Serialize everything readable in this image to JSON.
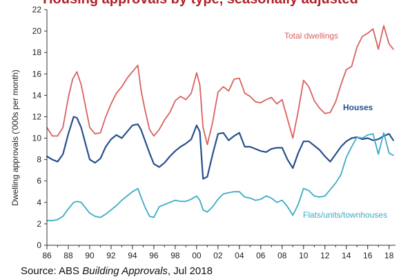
{
  "title": "Housing approvals by type, seasonally adjusted",
  "source": {
    "prefix": "Source: ABS ",
    "publication": "Building Approvals",
    "suffix": ", Jul 2018"
  },
  "colors": {
    "title": "#b0232a",
    "total": "#d9605f",
    "houses": "#274f8d",
    "flats": "#3aabc4",
    "axis": "#333333"
  },
  "chart_data": {
    "type": "line",
    "title": "Housing approvals by type, seasonally adjusted",
    "ylabel": "Dwelling approvals ('000s per month)",
    "xlabel": "",
    "xlim": [
      1986,
      2018.6
    ],
    "ylim": [
      0,
      22
    ],
    "x_ticks": [
      1986,
      1988,
      1990,
      1992,
      1994,
      1996,
      1998,
      2000,
      2002,
      2004,
      2006,
      2008,
      2010,
      2012,
      2014,
      2016,
      2018
    ],
    "x_tick_labels": [
      "86",
      "88",
      "90",
      "92",
      "94",
      "96",
      "98",
      "00",
      "02",
      "04",
      "06",
      "08",
      "10",
      "12",
      "14",
      "16",
      "18"
    ],
    "y_ticks": [
      0,
      2,
      4,
      6,
      8,
      10,
      12,
      14,
      16,
      18,
      20,
      22
    ],
    "grid": false,
    "series": [
      {
        "name": "Total dwellings",
        "x": [
          1986.0,
          1986.5,
          1987.0,
          1987.5,
          1988.0,
          1988.4,
          1988.8,
          1989.2,
          1989.6,
          1990.0,
          1990.5,
          1991.0,
          1991.5,
          1992.0,
          1992.5,
          1993.0,
          1993.5,
          1994.0,
          1994.5,
          1994.8,
          1995.2,
          1995.6,
          1996.0,
          1996.5,
          1997.0,
          1997.5,
          1998.0,
          1998.5,
          1999.0,
          1999.5,
          2000.0,
          2000.3,
          2000.6,
          2001.0,
          2001.5,
          2002.0,
          2002.5,
          2003.0,
          2003.5,
          2004.0,
          2004.5,
          2005.0,
          2005.5,
          2006.0,
          2006.5,
          2007.0,
          2007.5,
          2008.0,
          2008.5,
          2009.0,
          2009.5,
          2010.0,
          2010.5,
          2011.0,
          2011.5,
          2012.0,
          2012.5,
          2013.0,
          2013.5,
          2014.0,
          2014.5,
          2015.0,
          2015.5,
          2016.0,
          2016.5,
          2017.0,
          2017.5,
          2018.0,
          2018.4
        ],
        "y": [
          11,
          10.2,
          10.2,
          11,
          13.8,
          15.5,
          16.2,
          15,
          13,
          11,
          10.4,
          10.5,
          12,
          13.2,
          14.2,
          14.8,
          15.6,
          16.2,
          16.8,
          14.5,
          12.5,
          10.8,
          10.2,
          10.8,
          11.7,
          12.4,
          13.5,
          13.9,
          13.6,
          14.2,
          16.1,
          15,
          11,
          9.4,
          11.5,
          14.3,
          14.8,
          14.4,
          15.5,
          15.6,
          14.2,
          13.9,
          13.4,
          13.3,
          13.6,
          13.8,
          13.2,
          13.6,
          11.8,
          10,
          12.5,
          15.4,
          14.8,
          13.5,
          12.8,
          12.3,
          12.4,
          13.4,
          15,
          16.4,
          16.7,
          18.5,
          19.5,
          19.8,
          20.2,
          18.3,
          20.5,
          18.8,
          18.3
        ]
      },
      {
        "name": "Houses",
        "x": [
          1986.0,
          1986.5,
          1987.0,
          1987.5,
          1988.0,
          1988.5,
          1988.8,
          1989.2,
          1989.6,
          1990.0,
          1990.5,
          1991.0,
          1991.5,
          1992.0,
          1992.5,
          1993.0,
          1993.5,
          1994.0,
          1994.5,
          1994.8,
          1995.2,
          1995.6,
          1996.0,
          1996.5,
          1997.0,
          1997.5,
          1998.0,
          1998.5,
          1999.0,
          1999.5,
          2000.0,
          2000.3,
          2000.6,
          2001.0,
          2001.5,
          2002.0,
          2002.5,
          2003.0,
          2003.5,
          2004.0,
          2004.5,
          2005.0,
          2005.5,
          2006.0,
          2006.5,
          2007.0,
          2007.5,
          2008.0,
          2008.5,
          2009.0,
          2009.5,
          2010.0,
          2010.5,
          2011.0,
          2011.5,
          2012.0,
          2012.5,
          2013.0,
          2013.5,
          2014.0,
          2014.5,
          2015.0,
          2015.5,
          2016.0,
          2016.5,
          2017.0,
          2017.5,
          2018.0,
          2018.4
        ],
        "y": [
          8.3,
          8,
          7.8,
          8.5,
          10.4,
          12,
          11.9,
          11,
          9.5,
          8,
          7.7,
          8.1,
          9.2,
          9.9,
          10.3,
          10,
          10.6,
          11.2,
          11.3,
          10.8,
          9.7,
          8.6,
          7.6,
          7.3,
          7.7,
          8.3,
          8.8,
          9.2,
          9.5,
          9.9,
          11.2,
          10.6,
          6.2,
          6.4,
          8.5,
          10.4,
          10.5,
          9.8,
          10.2,
          10.5,
          9.2,
          9.2,
          9,
          8.8,
          8.7,
          9,
          9.1,
          9.1,
          8,
          7.2,
          8.6,
          9.7,
          9.7,
          9.3,
          8.9,
          8.3,
          7.8,
          8.5,
          9.2,
          9.7,
          10,
          10.1,
          9.9,
          10,
          9.8,
          9.9,
          10.2,
          10.4,
          9.8
        ]
      },
      {
        "name": "Flats/units/townhouses",
        "x": [
          1986.0,
          1986.5,
          1987.0,
          1987.5,
          1988.0,
          1988.5,
          1988.8,
          1989.2,
          1989.6,
          1990.0,
          1990.5,
          1991.0,
          1991.5,
          1992.0,
          1992.5,
          1993.0,
          1993.5,
          1994.0,
          1994.5,
          1994.8,
          1995.2,
          1995.6,
          1996.0,
          1996.5,
          1997.0,
          1997.5,
          1998.0,
          1998.5,
          1999.0,
          1999.5,
          2000.0,
          2000.3,
          2000.6,
          2001.0,
          2001.5,
          2002.0,
          2002.5,
          2003.0,
          2003.5,
          2004.0,
          2004.5,
          2005.0,
          2005.5,
          2006.0,
          2006.5,
          2007.0,
          2007.5,
          2008.0,
          2008.5,
          2009.0,
          2009.5,
          2010.0,
          2010.5,
          2011.0,
          2011.5,
          2012.0,
          2012.5,
          2013.0,
          2013.5,
          2014.0,
          2014.5,
          2015.0,
          2015.5,
          2016.0,
          2016.5,
          2017.0,
          2017.5,
          2018.0,
          2018.4
        ],
        "y": [
          2.3,
          2.3,
          2.4,
          2.7,
          3.4,
          4,
          4.1,
          4,
          3.5,
          3,
          2.7,
          2.6,
          2.9,
          3.3,
          3.7,
          4.2,
          4.6,
          5,
          5.3,
          4.5,
          3.5,
          2.7,
          2.6,
          3.6,
          3.8,
          4,
          4.2,
          4.1,
          4.1,
          4.3,
          4.6,
          4.2,
          3.3,
          3.1,
          3.6,
          4.3,
          4.8,
          4.9,
          5,
          5,
          4.5,
          4.4,
          4.2,
          4.3,
          4.6,
          4.4,
          4,
          4.2,
          3.6,
          2.8,
          3.8,
          5.3,
          5.1,
          4.6,
          4.5,
          4.6,
          5.2,
          5.8,
          6.6,
          8.2,
          9.2,
          10.1,
          10,
          10.3,
          10.4,
          8.5,
          10.5,
          8.6,
          8.4
        ]
      }
    ]
  }
}
